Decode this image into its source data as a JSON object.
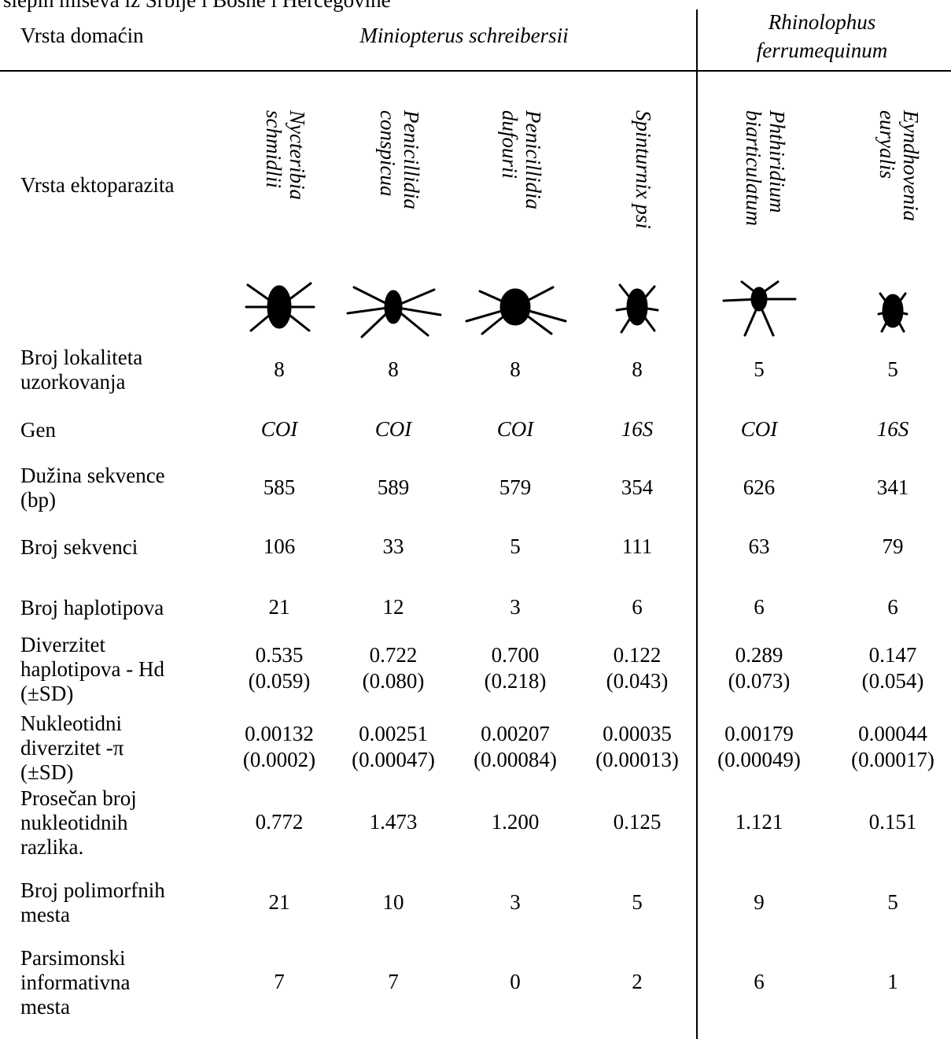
{
  "caption": "slepih miševa iz Srbije i Bosne i Hercegovine",
  "table": {
    "host_label": "Vrsta domaćin",
    "hosts": [
      [
        "Miniopterus schreibersii"
      ],
      [
        "Rhinolophus",
        "ferrumequinum"
      ]
    ],
    "ecto_label": "Vrsta ektoparazita",
    "ectoparasites": [
      [
        "Nycteribia",
        "schmidlii"
      ],
      [
        "Penicillidia",
        "conspicua"
      ],
      [
        "Penicillidia",
        "dufourii"
      ],
      [
        "Spinturnix psi"
      ],
      [
        "Phthiridium",
        "biarticulatum"
      ],
      [
        "Eyndhovenia",
        "euryalis"
      ]
    ],
    "rows": [
      {
        "label": [
          "Broj lokaliteta",
          "uzorkovanja"
        ],
        "values": [
          "8",
          "8",
          "8",
          "8",
          "5",
          "5"
        ]
      },
      {
        "label": [
          "Gen"
        ],
        "italic": true,
        "values": [
          "COI",
          "COI",
          "COI",
          "16S",
          "COI",
          "16S"
        ]
      },
      {
        "label": [
          "Dužina sekvence",
          "(bp)"
        ],
        "values": [
          "585",
          "589",
          "579",
          "354",
          "626",
          "341"
        ]
      },
      {
        "label": [
          "Broj sekvenci"
        ],
        "values": [
          "106",
          "33",
          "5",
          "111",
          "63",
          "79"
        ]
      },
      {
        "label": [
          "Broj haplotipova"
        ],
        "values": [
          "21",
          "12",
          "3",
          "6",
          "6",
          "6"
        ]
      },
      {
        "label": [
          "Diverzitet",
          "haplotipova - Hd",
          "(±SD)"
        ],
        "values": [
          [
            "0.535",
            "(0.059)"
          ],
          [
            "0.722",
            "(0.080)"
          ],
          [
            "0.700",
            "(0.218)"
          ],
          [
            "0.122",
            "(0.043)"
          ],
          [
            "0.289",
            "(0.073)"
          ],
          [
            "0.147",
            "(0.054)"
          ]
        ]
      },
      {
        "label": [
          "Nukleotidni",
          "diverzitet -π",
          "(±SD)"
        ],
        "values": [
          [
            "0.00132",
            "(0.0002)"
          ],
          [
            "0.00251",
            "(0.00047)"
          ],
          [
            "0.00207",
            "(0.00084)"
          ],
          [
            "0.00035",
            "(0.00013)"
          ],
          [
            "0.00179",
            "(0.00049)"
          ],
          [
            "0.00044",
            "(0.00017)"
          ]
        ]
      },
      {
        "label": [
          "Prosečan broj",
          "nukleotidnih",
          "razlika."
        ],
        "values": [
          "0.772",
          "1.473",
          "1.200",
          "0.125",
          "1.121",
          "0.151"
        ]
      },
      {
        "label": [
          "Broj polimorfnih",
          "mesta"
        ],
        "values": [
          "21",
          "10",
          "3",
          "5",
          "9",
          "5"
        ]
      },
      {
        "label": [
          "Parsimonski",
          "informativna",
          "mesta"
        ],
        "values": [
          "7",
          "7",
          "0",
          "2",
          "6",
          "1"
        ]
      }
    ]
  }
}
